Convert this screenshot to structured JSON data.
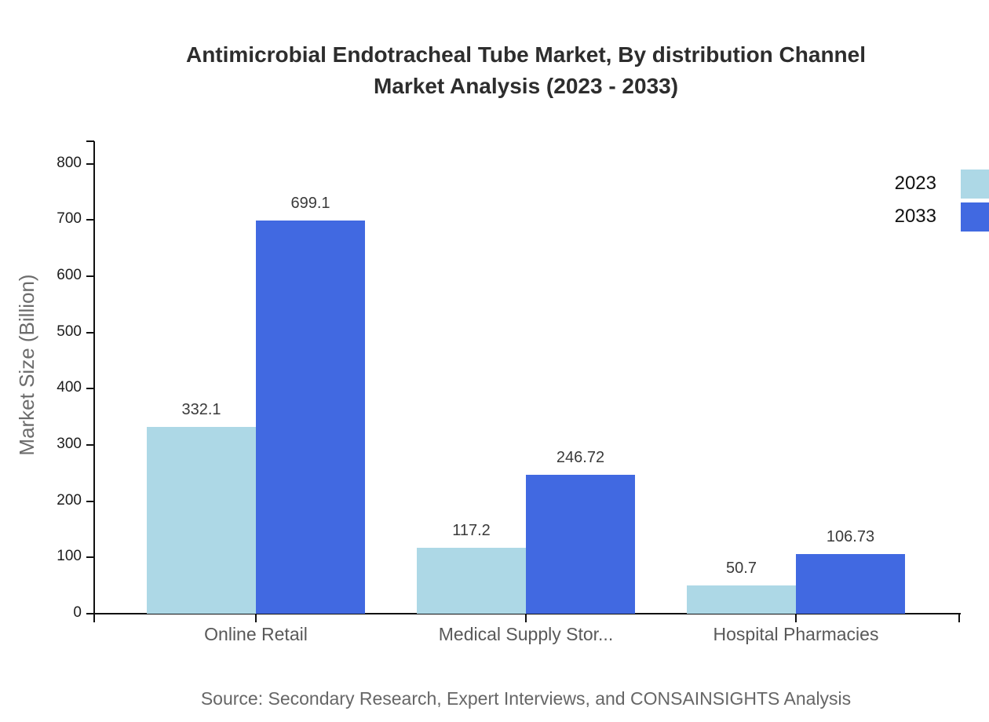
{
  "title": {
    "line1": "Antimicrobial Endotracheal Tube Market, By distribution Channel",
    "line2": "Market Analysis (2023 - 2033)"
  },
  "source": "Source: Secondary Research, Expert Interviews, and CONSAINSIGHTS Analysis",
  "colors": {
    "series_2023": "#ADD8E6",
    "series_2033": "#4169E1",
    "axis": "#111111",
    "title_text": "#2d2d2d",
    "category_text": "#595959",
    "source_text": "#666666"
  },
  "chart_data": {
    "type": "bar",
    "title": "Antimicrobial Endotracheal Tube Market, By distribution Channel Market Analysis (2023 - 2033)",
    "categories": [
      "Online Retail",
      "Medical Supply Stor...",
      "Hospital Pharmacies"
    ],
    "series": [
      {
        "name": "2023",
        "color": "#ADD8E6",
        "values": [
          332.1,
          117.2,
          50.7
        ]
      },
      {
        "name": "2033",
        "color": "#4169E1",
        "values": [
          699.1,
          246.72,
          106.73
        ]
      }
    ],
    "xlabel": "",
    "ylabel": "Market Size (Billion)",
    "yticks": [
      0,
      100,
      200,
      300,
      400,
      500,
      600,
      700,
      800
    ],
    "ylim": [
      0,
      840
    ],
    "grid": false,
    "legend_position": "top-right",
    "value_labels": true
  }
}
